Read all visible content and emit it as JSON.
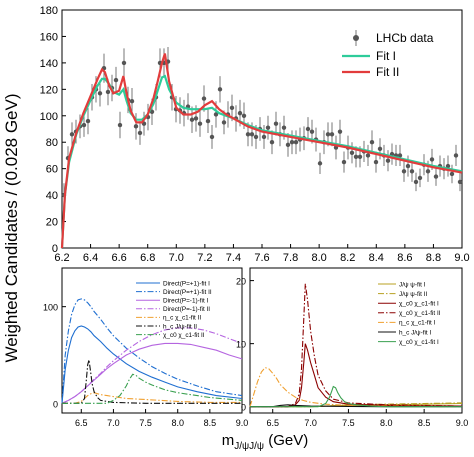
{
  "ylabel": "Weighted Candidates / (0.028 GeV)",
  "xlabel_main": "m",
  "xlabel_sub": "J/ψJ/ψ",
  "xlabel_unit": " (GeV)",
  "chart_data": [
    {
      "type": "scatter",
      "panel": "top",
      "xlim": [
        6.2,
        9.0
      ],
      "ylim": [
        0,
        180
      ],
      "xticks": [
        "6.2",
        "6.4",
        "6.6",
        "6.8",
        "7.0",
        "7.2",
        "7.4",
        "7.6",
        "7.8",
        "8.0",
        "8.2",
        "8.4",
        "8.6",
        "8.8",
        "9.0"
      ],
      "yticks": [
        "0",
        "20",
        "40",
        "60",
        "80",
        "100",
        "120",
        "140",
        "160",
        "180"
      ],
      "legend": {
        "position": "top-right",
        "entries": [
          "LHCb data",
          "Fit I",
          "Fit II"
        ]
      },
      "data_label": "LHCb data",
      "data_color": "#555555",
      "data_points": {
        "x": [
          6.214,
          6.242,
          6.27,
          6.298,
          6.326,
          6.354,
          6.382,
          6.41,
          6.438,
          6.466,
          6.494,
          6.522,
          6.55,
          6.578,
          6.606,
          6.634,
          6.662,
          6.69,
          6.718,
          6.746,
          6.774,
          6.802,
          6.83,
          6.858,
          6.886,
          6.914,
          6.942,
          6.97,
          6.998,
          7.026,
          7.054,
          7.082,
          7.11,
          7.138,
          7.166,
          7.194,
          7.222,
          7.25,
          7.278,
          7.306,
          7.334,
          7.362,
          7.39,
          7.418,
          7.446,
          7.474,
          7.502,
          7.53,
          7.558,
          7.586,
          7.614,
          7.642,
          7.67,
          7.698,
          7.726,
          7.754,
          7.782,
          7.81,
          7.838,
          7.866,
          7.894,
          7.922,
          7.95,
          7.978,
          8.006,
          8.034,
          8.062,
          8.09,
          8.118,
          8.146,
          8.174,
          8.202,
          8.23,
          8.258,
          8.286,
          8.314,
          8.342,
          8.37,
          8.398,
          8.426,
          8.454,
          8.482,
          8.51,
          8.538,
          8.566,
          8.594,
          8.622,
          8.65,
          8.678,
          8.706,
          8.734,
          8.762,
          8.79,
          8.818,
          8.846,
          8.874,
          8.902,
          8.93,
          8.958,
          8.986
        ],
        "y": [
          40,
          68,
          86,
          88,
          92,
          93,
          96,
          114,
          120,
          117,
          136,
          118,
          121,
          127,
          93,
          140,
          112,
          111,
          92,
          87,
          94,
          99,
          103,
          114,
          140,
          140,
          141,
          114,
          105,
          104,
          102,
          107,
          97,
          98,
          94,
          113,
          96,
          84,
          101,
          120,
          95,
          101,
          106,
          98,
          102,
          100,
          86,
          86,
          84,
          90,
          84,
          91,
          80,
          94,
          86,
          91,
          78,
          80,
          80,
          82,
          83,
          90,
          88,
          82,
          64,
          80,
          86,
          86,
          76,
          88,
          65,
          76,
          72,
          69,
          69,
          73,
          70,
          80,
          65,
          75,
          70,
          66,
          71,
          70,
          70,
          58,
          62,
          58,
          50,
          53,
          63,
          58,
          67,
          54,
          62,
          60,
          62,
          56,
          70,
          50
        ],
        "err": [
          9,
          9,
          9,
          9,
          9,
          9,
          10,
          10,
          10,
          10,
          11,
          10,
          10,
          10,
          10,
          11,
          10,
          10,
          10,
          9,
          9,
          10,
          10,
          10,
          11,
          11,
          11,
          10,
          10,
          10,
          10,
          10,
          10,
          10,
          10,
          10,
          9,
          9,
          10,
          10,
          9,
          10,
          10,
          10,
          10,
          10,
          9,
          9,
          9,
          9,
          9,
          9,
          9,
          9,
          9,
          9,
          9,
          9,
          9,
          9,
          9,
          9,
          9,
          9,
          8,
          9,
          9,
          9,
          9,
          9,
          8,
          9,
          8,
          8,
          8,
          8,
          8,
          9,
          8,
          8,
          8,
          8,
          8,
          8,
          8,
          8,
          8,
          8,
          7,
          7,
          8,
          8,
          8,
          7,
          8,
          8,
          8,
          7,
          8,
          7
        ]
      },
      "series": [
        {
          "name": "Fit I",
          "color": "#2ecc9a",
          "x": [
            6.2,
            6.22,
            6.25,
            6.3,
            6.35,
            6.4,
            6.45,
            6.48,
            6.5,
            6.53,
            6.56,
            6.6,
            6.63,
            6.65,
            6.68,
            6.72,
            6.76,
            6.8,
            6.84,
            6.87,
            6.9,
            6.92,
            6.95,
            7.0,
            7.05,
            7.1,
            7.15,
            7.2,
            7.25,
            7.3,
            7.35,
            7.4,
            7.5,
            7.6,
            7.8,
            8.0,
            8.2,
            8.4,
            8.6,
            8.8,
            9.0
          ],
          "y": [
            0,
            40,
            65,
            86,
            100,
            112,
            123,
            128,
            128,
            124,
            118,
            116,
            120,
            112,
            102,
            97,
            97,
            101,
            109,
            119,
            129,
            130,
            120,
            110,
            106,
            105,
            105,
            105,
            106,
            102,
            100,
            98,
            93,
            89,
            85,
            81,
            77,
            72,
            67,
            62,
            58
          ]
        },
        {
          "name": "Fit II",
          "color": "#e23c3c",
          "x": [
            6.2,
            6.22,
            6.25,
            6.3,
            6.35,
            6.4,
            6.45,
            6.48,
            6.5,
            6.53,
            6.56,
            6.6,
            6.63,
            6.65,
            6.68,
            6.72,
            6.76,
            6.8,
            6.84,
            6.87,
            6.9,
            6.92,
            6.95,
            7.0,
            7.05,
            7.1,
            7.15,
            7.2,
            7.25,
            7.3,
            7.35,
            7.4,
            7.5,
            7.6,
            7.8,
            8.0,
            8.2,
            8.4,
            8.6,
            8.8,
            9.0
          ],
          "y": [
            0,
            40,
            68,
            87,
            102,
            115,
            128,
            135,
            133,
            123,
            117,
            119,
            130,
            118,
            104,
            95,
            95,
            101,
            113,
            126,
            140,
            147,
            126,
            106,
            101,
            101,
            103,
            108,
            111,
            105,
            101,
            98,
            92,
            88,
            84,
            80,
            76,
            71,
            66,
            61,
            57
          ]
        }
      ]
    },
    {
      "type": "line",
      "panel": "bottom-left",
      "xlim": [
        6.2,
        9.0
      ],
      "ylim": [
        -10,
        140
      ],
      "xticks": [
        "6.5",
        "7.0",
        "7.5",
        "8.0",
        "8.5",
        "9.0"
      ],
      "yticks": [
        "0",
        "100"
      ],
      "legend": {
        "position": "top-right"
      },
      "series": [
        {
          "name": "Direct(P=+1)-fit I",
          "color": "#1f6fd1",
          "dash": "solid",
          "x": [
            6.2,
            6.25,
            6.3,
            6.35,
            6.4,
            6.45,
            6.5,
            6.55,
            6.6,
            6.65,
            6.7,
            6.8,
            6.9,
            7.0,
            7.2,
            7.4,
            7.6,
            7.8,
            8.0,
            8.3,
            8.6,
            9.0
          ],
          "y": [
            0,
            35,
            55,
            68,
            75,
            79,
            80,
            79,
            77,
            74,
            70,
            64,
            57,
            51,
            41,
            33,
            27,
            22,
            17,
            12,
            8,
            5
          ]
        },
        {
          "name": "Direct(P=+1)-fit II",
          "color": "#1f6fd1",
          "dash": "dashdot",
          "x": [
            6.2,
            6.25,
            6.3,
            6.35,
            6.4,
            6.45,
            6.5,
            6.55,
            6.6,
            6.65,
            6.7,
            6.8,
            6.9,
            7.0,
            7.2,
            7.4,
            7.6,
            7.8,
            8.0,
            8.3,
            8.6,
            9.0
          ],
          "y": [
            0,
            50,
            75,
            92,
            102,
            107,
            108,
            107,
            104,
            100,
            95,
            87,
            78,
            70,
            57,
            47,
            38,
            31,
            25,
            18,
            12,
            8
          ]
        },
        {
          "name": "Direct(P=-1)-fit I",
          "color": "#b565e0",
          "dash": "solid",
          "x": [
            6.2,
            6.3,
            6.4,
            6.5,
            6.6,
            6.7,
            6.8,
            6.9,
            7.0,
            7.2,
            7.4,
            7.6,
            7.8,
            8.0,
            8.2,
            8.4,
            8.6,
            8.8,
            9.0
          ],
          "y": [
            0,
            3,
            7,
            12,
            18,
            24,
            30,
            36,
            41,
            50,
            56,
            60,
            62,
            62,
            61,
            58,
            55,
            50,
            46
          ]
        },
        {
          "name": "Direct(P=-1)-fit II",
          "color": "#b565e0",
          "dash": "dashdot",
          "x": [
            6.2,
            6.3,
            6.4,
            6.5,
            6.6,
            6.7,
            6.8,
            6.9,
            7.0,
            7.2,
            7.4,
            7.6,
            7.8,
            8.0,
            8.2,
            8.4,
            8.6,
            8.8,
            9.0
          ],
          "y": [
            0,
            3,
            7,
            12,
            18,
            25,
            31,
            38,
            44,
            55,
            64,
            71,
            76,
            78,
            78,
            76,
            72,
            67,
            62
          ]
        },
        {
          "name": "η_c χ_c1-fit II",
          "color": "#f0a030",
          "dash": "dashdot",
          "x": [
            6.2,
            6.4,
            6.5,
            6.55,
            6.6,
            6.65,
            6.7,
            6.8,
            6.9,
            7.0,
            7.2,
            7.5,
            8.0,
            8.5,
            9.0
          ],
          "y": [
            0,
            0,
            2,
            5,
            8,
            10,
            11,
            9,
            8,
            7,
            5,
            4,
            2,
            1,
            1
          ]
        },
        {
          "name": "h_c J/ψ-fit II",
          "color": "#111111",
          "dash": "dashdot",
          "x": [
            6.2,
            6.5,
            6.55,
            6.58,
            6.6,
            6.62,
            6.64,
            6.67,
            6.7,
            6.75,
            6.8,
            7.0,
            7.5,
            8.0,
            9.0
          ],
          "y": [
            0,
            0,
            5,
            25,
            40,
            45,
            35,
            20,
            12,
            6,
            3,
            1,
            0,
            0,
            0
          ]
        },
        {
          "name": "χ_c0 χ_c1-fit II",
          "color": "#3aa050",
          "dash": "dashdot",
          "x": [
            6.2,
            6.9,
            7.0,
            7.1,
            7.2,
            7.25,
            7.3,
            7.35,
            7.4,
            7.5,
            7.6,
            7.8,
            8.0,
            8.5,
            9.0
          ],
          "y": [
            0,
            0,
            3,
            8,
            18,
            25,
            30,
            29,
            26,
            22,
            19,
            14,
            11,
            6,
            3
          ]
        }
      ]
    },
    {
      "type": "line",
      "panel": "bottom-right",
      "xlim": [
        6.2,
        9.0
      ],
      "ylim": [
        -1,
        22
      ],
      "xticks": [
        "6.5",
        "7.0",
        "7.5",
        "8.0",
        "8.5",
        "9.0"
      ],
      "yticks": [
        "0",
        "10",
        "20"
      ],
      "legend": {
        "position": "top-left"
      },
      "series": [
        {
          "name": "J/ψ ψ-fit I",
          "color": "#b8a020",
          "dash": "solid",
          "x": [
            6.2,
            7.0,
            7.2,
            7.5,
            8.0,
            8.5,
            9.0
          ],
          "y": [
            0,
            0,
            0.1,
            0.2,
            0.3,
            0.4,
            0.5
          ]
        },
        {
          "name": "J/ψ ψ-fit II",
          "color": "#b8a020",
          "dash": "dashdot",
          "x": [
            6.2,
            7.0,
            7.2,
            7.5,
            8.0,
            8.5,
            9.0
          ],
          "y": [
            0,
            0,
            0.1,
            0.3,
            0.4,
            0.5,
            0.6
          ]
        },
        {
          "name": "χ_c0 χ_c1-fit I",
          "color": "#8b0000",
          "dash": "solid",
          "x": [
            6.2,
            6.7,
            6.8,
            6.85,
            6.88,
            6.91,
            6.93,
            6.96,
            7.0,
            7.05,
            7.1,
            7.2,
            7.3,
            7.5,
            8.0,
            9.0
          ],
          "y": [
            0,
            0,
            0.3,
            1,
            3,
            7,
            10,
            9,
            7,
            5,
            3,
            1.5,
            0.8,
            0.4,
            0.2,
            0.1
          ]
        },
        {
          "name": "χ_c0 χ_c1-fit II",
          "color": "#8b0000",
          "dash": "dashdot",
          "x": [
            6.2,
            6.7,
            6.8,
            6.85,
            6.88,
            6.91,
            6.93,
            6.96,
            7.0,
            7.05,
            7.1,
            7.2,
            7.3,
            7.5,
            8.0,
            9.0
          ],
          "y": [
            0,
            0,
            0.5,
            2,
            6,
            14,
            19.5,
            17,
            12,
            8,
            5,
            2.5,
            1.2,
            0.6,
            0.3,
            0.1
          ]
        },
        {
          "name": "η_c χ_c1-fit I",
          "color": "#f0a030",
          "dash": "dashdot",
          "x": [
            6.2,
            6.25,
            6.3,
            6.35,
            6.4,
            6.45,
            6.5,
            6.55,
            6.6,
            6.7,
            6.8,
            6.9,
            7.0,
            7.2,
            7.5,
            8.0,
            9.0
          ],
          "y": [
            0,
            2,
            4,
            5.5,
            6.2,
            6,
            5.3,
            4.5,
            3.5,
            2.3,
            1.5,
            1,
            0.7,
            0.4,
            0.2,
            0.1,
            0
          ]
        },
        {
          "name": "h_c J/ψ-fit I",
          "color": "#111111",
          "dash": "solid",
          "x": [
            6.2,
            6.5,
            6.6,
            6.7,
            6.8,
            7.0,
            7.5,
            8.0,
            9.0
          ],
          "y": [
            0,
            0,
            0.2,
            0.3,
            0.2,
            0.1,
            0.05,
            0,
            0
          ]
        },
        {
          "name": "χ_c0 χ_c1-fit I ",
          "color": "#3aa050",
          "dash": "solid",
          "x": [
            6.2,
            7.1,
            7.2,
            7.25,
            7.28,
            7.3,
            7.33,
            7.36,
            7.4,
            7.45,
            7.5,
            7.6,
            7.8,
            8.0,
            9.0
          ],
          "y": [
            0,
            0,
            0.5,
            1.5,
            2.5,
            3.2,
            3.0,
            2.2,
            1.4,
            0.8,
            0.5,
            0.3,
            0.1,
            0,
            0
          ]
        }
      ]
    }
  ]
}
